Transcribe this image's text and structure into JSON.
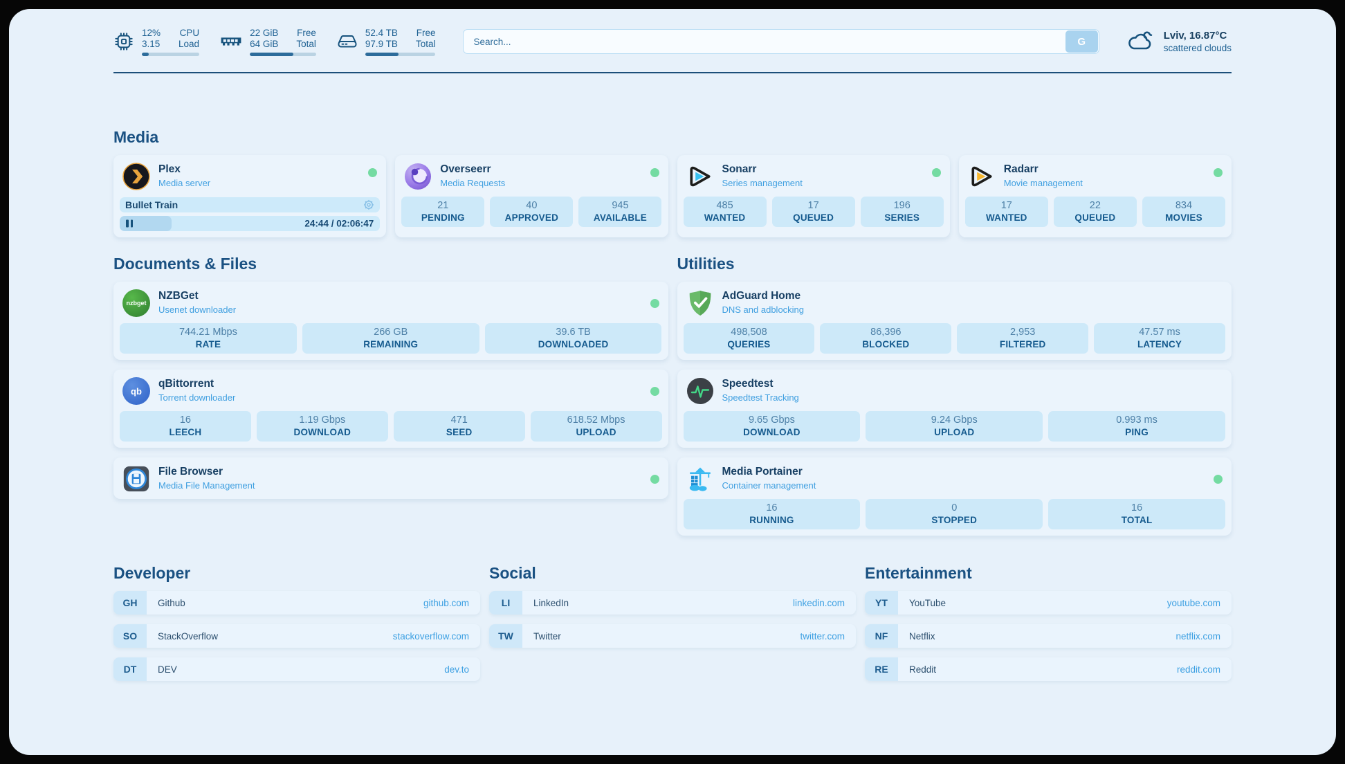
{
  "system": {
    "cpu": {
      "icon": "cpu-chip-icon",
      "value_top": "12%",
      "label_top": "CPU",
      "value_bottom": "3.15",
      "label_bottom": "Load",
      "progress_percent": 12
    },
    "memory": {
      "icon": "ram-icon",
      "value_top": "22 GiB",
      "label_top": "Free",
      "value_bottom": "64 GiB",
      "label_bottom": "Total",
      "progress_percent": 66
    },
    "disk": {
      "icon": "disk-icon",
      "value_top": "52.4 TB",
      "label_top": "Free",
      "value_bottom": "97.9 TB",
      "label_bottom": "Total",
      "progress_percent": 47
    }
  },
  "search": {
    "placeholder": "Search...",
    "button_label": "G"
  },
  "weather": {
    "icon": "cloud-icon",
    "location_temp": "Lviv, 16.87°C",
    "condition": "scattered clouds"
  },
  "media": {
    "title": "Media",
    "plex": {
      "name": "Plex",
      "subtitle": "Media server",
      "icon": "plex-icon",
      "status_online": true,
      "now_playing": "Bullet Train",
      "time": "24:44 / 02:06:47",
      "progress_percent": 20
    },
    "cards": [
      {
        "name": "Overseerr",
        "subtitle": "Media Requests",
        "icon": "overseerr-icon",
        "status_online": true,
        "stats": [
          {
            "value": "21",
            "label": "PENDING"
          },
          {
            "value": "40",
            "label": "APPROVED"
          },
          {
            "value": "945",
            "label": "AVAILABLE"
          }
        ]
      },
      {
        "name": "Sonarr",
        "subtitle": "Series management",
        "icon": "sonarr-icon",
        "status_online": true,
        "stats": [
          {
            "value": "485",
            "label": "WANTED"
          },
          {
            "value": "17",
            "label": "QUEUED"
          },
          {
            "value": "196",
            "label": "SERIES"
          }
        ]
      },
      {
        "name": "Radarr",
        "subtitle": "Movie management",
        "icon": "radarr-icon",
        "status_online": true,
        "stats": [
          {
            "value": "17",
            "label": "WANTED"
          },
          {
            "value": "22",
            "label": "QUEUED"
          },
          {
            "value": "834",
            "label": "MOVIES"
          }
        ]
      }
    ]
  },
  "documents": {
    "title": "Documents & Files",
    "cards": [
      {
        "name": "NZBGet",
        "subtitle": "Usenet downloader",
        "icon": "nzbget-icon",
        "icon_text": "nzbget",
        "status_online": true,
        "stats": [
          {
            "value": "744.21 Mbps",
            "label": "RATE"
          },
          {
            "value": "266 GB",
            "label": "REMAINING"
          },
          {
            "value": "39.6 TB",
            "label": "DOWNLOADED"
          }
        ]
      },
      {
        "name": "qBittorrent",
        "subtitle": "Torrent downloader",
        "icon": "qbittorrent-icon",
        "icon_text": "qb",
        "status_online": true,
        "stats": [
          {
            "value": "16",
            "label": "LEECH"
          },
          {
            "value": "1.19 Gbps",
            "label": "DOWNLOAD"
          },
          {
            "value": "471",
            "label": "SEED"
          },
          {
            "value": "618.52 Mbps",
            "label": "UPLOAD"
          }
        ]
      },
      {
        "name": "File Browser",
        "subtitle": "Media File Management",
        "icon": "filebrowser-icon",
        "status_online": true,
        "stats": []
      }
    ]
  },
  "utilities": {
    "title": "Utilities",
    "cards": [
      {
        "name": "AdGuard Home",
        "subtitle": "DNS and adblocking",
        "icon": "adguard-shield-icon",
        "status_online": false,
        "stats": [
          {
            "value": "498,508",
            "label": "QUERIES"
          },
          {
            "value": "86,396",
            "label": "BLOCKED"
          },
          {
            "value": "2,953",
            "label": "FILTERED"
          },
          {
            "value": "47.57 ms",
            "label": "LATENCY"
          }
        ]
      },
      {
        "name": "Speedtest",
        "subtitle": "Speedtest Tracking",
        "icon": "speedtest-pulse-icon",
        "status_online": false,
        "stats": [
          {
            "value": "9.65 Gbps",
            "label": "DOWNLOAD"
          },
          {
            "value": "9.24 Gbps",
            "label": "UPLOAD"
          },
          {
            "value": "0.993 ms",
            "label": "PING"
          }
        ]
      },
      {
        "name": "Media Portainer",
        "subtitle": "Container management",
        "icon": "portainer-crane-icon",
        "status_online": true,
        "stats": [
          {
            "value": "16",
            "label": "RUNNING"
          },
          {
            "value": "0",
            "label": "STOPPED"
          },
          {
            "value": "16",
            "label": "TOTAL"
          }
        ]
      }
    ]
  },
  "links": {
    "developer": {
      "title": "Developer",
      "items": [
        {
          "abbr": "GH",
          "name": "Github",
          "url": "github.com"
        },
        {
          "abbr": "SO",
          "name": "StackOverflow",
          "url": "stackoverflow.com"
        },
        {
          "abbr": "DT",
          "name": "DEV",
          "url": "dev.to"
        }
      ]
    },
    "social": {
      "title": "Social",
      "items": [
        {
          "abbr": "LI",
          "name": "LinkedIn",
          "url": "linkedin.com"
        },
        {
          "abbr": "TW",
          "name": "Twitter",
          "url": "twitter.com"
        }
      ]
    },
    "entertainment": {
      "title": "Entertainment",
      "items": [
        {
          "abbr": "YT",
          "name": "YouTube",
          "url": "youtube.com"
        },
        {
          "abbr": "NF",
          "name": "Netflix",
          "url": "netflix.com"
        },
        {
          "abbr": "RE",
          "name": "Reddit",
          "url": "reddit.com"
        }
      ]
    }
  },
  "colors": {
    "status_online": "#74dba2",
    "accent_subtitle": "#3f9fe0",
    "navy_text": "#17537d",
    "stat_box_bg": "#cde9f9",
    "page_bg": "#e7f1fa"
  }
}
